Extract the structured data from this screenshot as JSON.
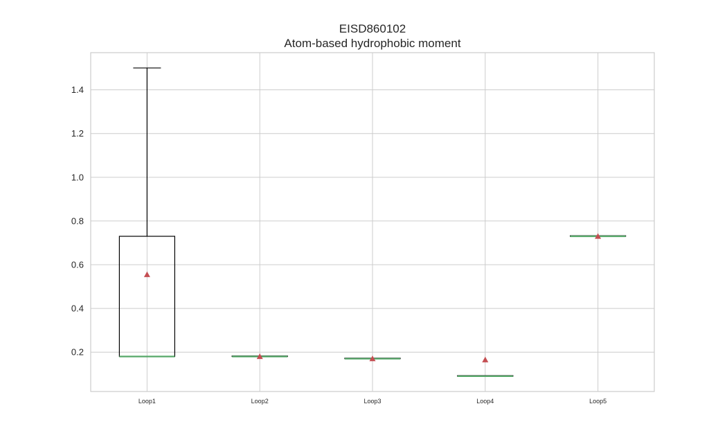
{
  "chart_data": {
    "type": "box",
    "title": "EISD860102",
    "subtitle": "Atom-based hydrophobic moment",
    "xlabel": "",
    "ylabel": "",
    "categories": [
      "Loop1",
      "Loop2",
      "Loop3",
      "Loop4",
      "Loop5"
    ],
    "boxes": [
      {
        "category": "Loop1",
        "whisker_low": 0.18,
        "q1": 0.18,
        "median": 0.18,
        "q3": 0.73,
        "whisker_high": 1.5,
        "mean": 0.555
      },
      {
        "category": "Loop2",
        "whisker_low": 0.18,
        "q1": 0.18,
        "median": 0.18,
        "q3": 0.18,
        "whisker_high": 0.18,
        "mean": 0.18
      },
      {
        "category": "Loop3",
        "whisker_low": 0.17,
        "q1": 0.17,
        "median": 0.17,
        "q3": 0.17,
        "whisker_high": 0.17,
        "mean": 0.17
      },
      {
        "category": "Loop4",
        "whisker_low": 0.09,
        "q1": 0.09,
        "median": 0.09,
        "q3": 0.09,
        "whisker_high": 0.09,
        "mean": 0.165
      },
      {
        "category": "Loop5",
        "whisker_low": 0.73,
        "q1": 0.73,
        "median": 0.73,
        "q3": 0.73,
        "whisker_high": 0.73,
        "mean": 0.73
      }
    ],
    "y_ticks": [
      "0.2",
      "0.4",
      "0.6",
      "0.8",
      "1.0",
      "1.2",
      "1.4"
    ],
    "ylim": [
      0.02,
      1.57
    ],
    "grid": true,
    "colors": {
      "box": "#000000",
      "median": "#55a868",
      "mean_marker": "#c44e52",
      "grid": "#cccccc",
      "frame": "#cccccc"
    }
  }
}
